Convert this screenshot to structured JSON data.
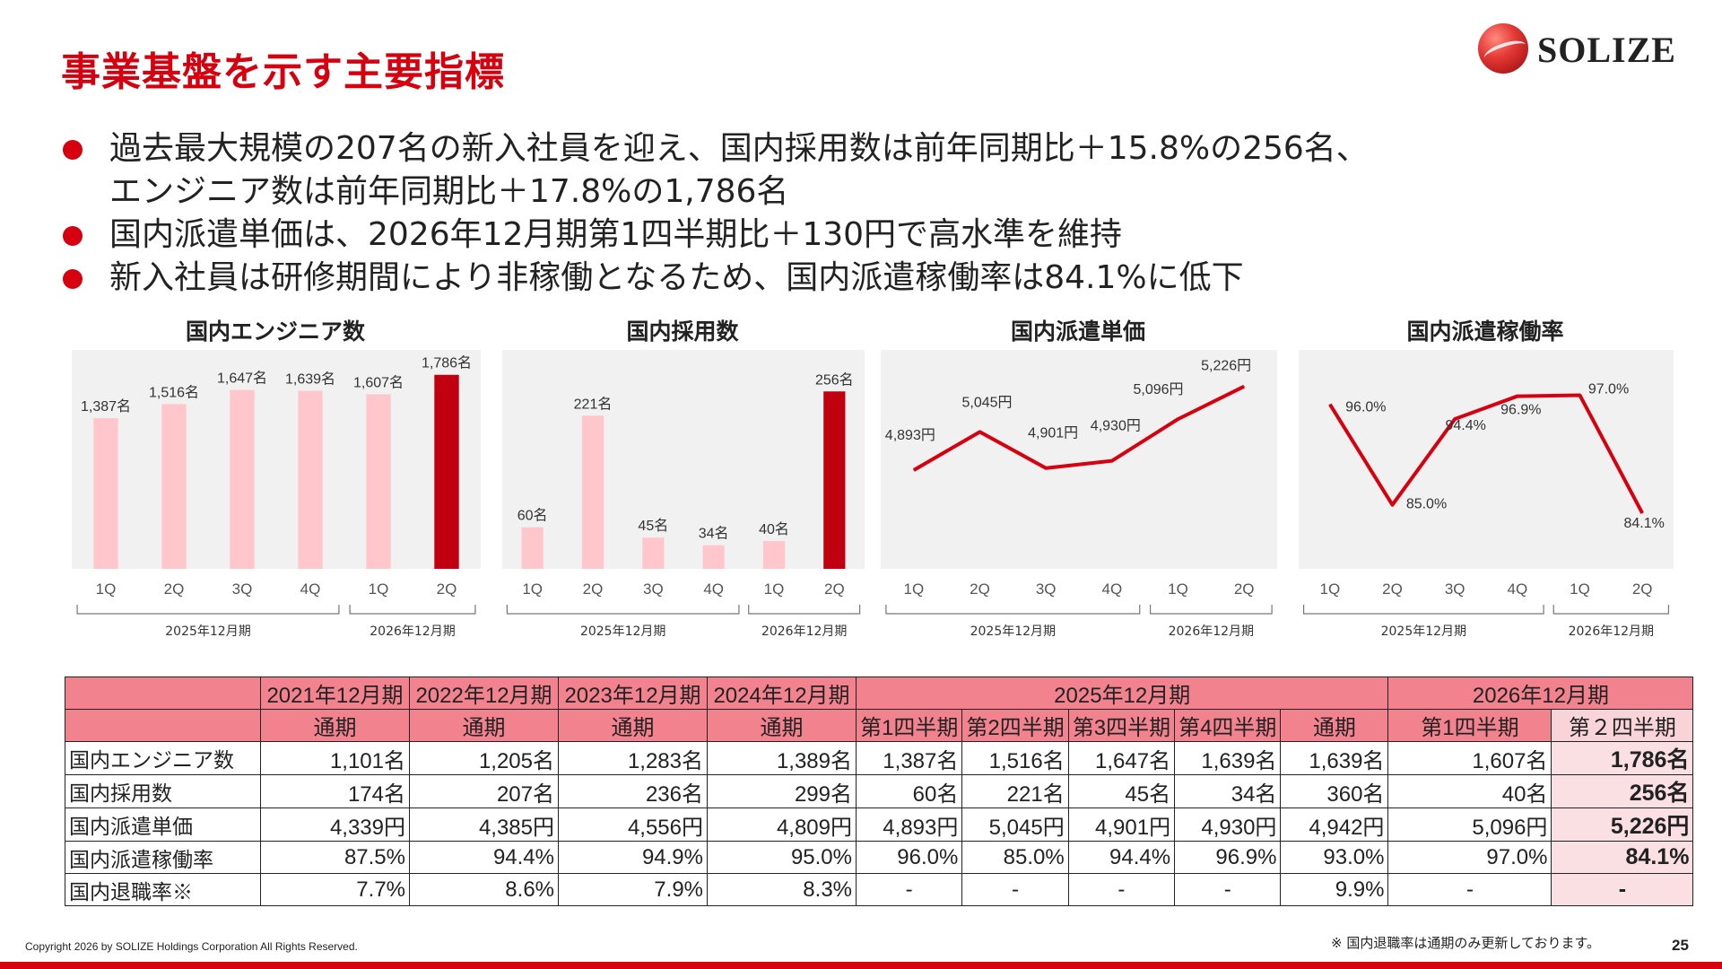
{
  "page": {
    "title": "事業基盤を示す主要指標",
    "logo_text": "SOLIZE",
    "copyright": "Copyright 2026 by SOLIZE Holdings Corporation All Rights Reserved.",
    "page_number": "25",
    "footnote": "※ 国内退職率は通期のみ更新しております。",
    "accent_color": "#d7000f"
  },
  "bullets": [
    {
      "line1": "過去最大規模の207名の新入社員を迎え、国内採用数は前年同期比＋15.8%の256名、",
      "line2": "エンジニア数は前年同期比＋17.8%の1,786名"
    },
    {
      "line1": "国内派遣単価は、2026年12月期第1四半期比＋130円で高水準を維持",
      "line2": ""
    },
    {
      "line1": "新入社員は研修期間により非稼働となるため、国内派遣稼働率は84.1%に低下",
      "line2": ""
    }
  ],
  "chart_data": [
    {
      "type": "bar",
      "title": "国内エンジニア数",
      "categories": [
        "1Q",
        "2Q",
        "3Q",
        "4Q",
        "1Q",
        "2Q"
      ],
      "values": [
        1387,
        1516,
        1647,
        1639,
        1607,
        1786
      ],
      "labels": [
        "1,387名",
        "1,516名",
        "1,647名",
        "1,639名",
        "1,607名",
        "1,786名"
      ],
      "groups": [
        {
          "label": "2025年12月期",
          "from": 0,
          "to": 3
        },
        {
          "label": "2026年12月期",
          "from": 4,
          "to": 5
        }
      ],
      "ylim": [
        0,
        1850
      ],
      "highlight_index": 5,
      "colors": {
        "bar": "#ffc7cc",
        "highlight": "#c00010",
        "background": "#f1f1f1"
      }
    },
    {
      "type": "bar",
      "title": "国内採用数",
      "categories": [
        "1Q",
        "2Q",
        "3Q",
        "4Q",
        "1Q",
        "2Q"
      ],
      "values": [
        60,
        221,
        45,
        34,
        40,
        256
      ],
      "labels": [
        "60名",
        "221名",
        "45名",
        "34名",
        "40名",
        "256名"
      ],
      "groups": [
        {
          "label": "2025年12月期",
          "from": 0,
          "to": 3
        },
        {
          "label": "2026年12月期",
          "from": 4,
          "to": 5
        }
      ],
      "ylim": [
        0,
        290
      ],
      "highlight_index": 5,
      "colors": {
        "bar": "#ffc7cc",
        "highlight": "#c00010",
        "background": "#f1f1f1"
      }
    },
    {
      "type": "line",
      "title": "国内派遣単価",
      "categories": [
        "1Q",
        "2Q",
        "3Q",
        "4Q",
        "1Q",
        "2Q"
      ],
      "values": [
        4893,
        5045,
        4901,
        4930,
        5096,
        5226
      ],
      "labels": [
        "4,893円",
        "5,045円",
        "4,901円",
        "4,930円",
        "5,096円",
        "5,226円"
      ],
      "groups": [
        {
          "label": "2025年12月期",
          "from": 0,
          "to": 3
        },
        {
          "label": "2026年12月期",
          "from": 4,
          "to": 5
        }
      ],
      "ylim": [
        4500,
        5300
      ],
      "colors": {
        "line": "#d7000f",
        "background": "#f1f1f1"
      }
    },
    {
      "type": "line",
      "title": "国内派遣稼働率",
      "categories": [
        "1Q",
        "2Q",
        "3Q",
        "4Q",
        "1Q",
        "2Q"
      ],
      "values": [
        96.0,
        85.0,
        94.4,
        96.9,
        97.0,
        84.1
      ],
      "labels": [
        "96.0%",
        "85.0%",
        "94.4%",
        "96.9%",
        "97.0%",
        "84.1%"
      ],
      "groups": [
        {
          "label": "2025年12月期",
          "from": 0,
          "to": 3
        },
        {
          "label": "2026年12月期",
          "from": 4,
          "to": 5
        }
      ],
      "ylim": [
        78,
        100
      ],
      "colors": {
        "line": "#d7000f",
        "background": "#f1f1f1"
      }
    }
  ],
  "table": {
    "header1": [
      "",
      "2021年12月期",
      "2022年12月期",
      "2023年12月期",
      "2024年12月期",
      "2025年12月期",
      "2026年12月期"
    ],
    "header2": [
      "",
      "通期",
      "通期",
      "通期",
      "通期",
      "第1四半期",
      "第2四半期",
      "第3四半期",
      "第4四半期",
      "通期",
      "第1四半期",
      "第２四半期"
    ],
    "rows": [
      {
        "label": "国内エンジニア数",
        "cells": [
          "1,101名",
          "1,205名",
          "1,283名",
          "1,389名",
          "1,387名",
          "1,516名",
          "1,647名",
          "1,639名",
          "1,639名",
          "1,607名",
          "1,786名"
        ]
      },
      {
        "label": "国内採用数",
        "cells": [
          "174名",
          "207名",
          "236名",
          "299名",
          "60名",
          "221名",
          "45名",
          "34名",
          "360名",
          "40名",
          "256名"
        ]
      },
      {
        "label": "国内派遣単価",
        "cells": [
          "4,339円",
          "4,385円",
          "4,556円",
          "4,809円",
          "4,893円",
          "5,045円",
          "4,901円",
          "4,930円",
          "4,942円",
          "5,096円",
          "5,226円"
        ]
      },
      {
        "label": "国内派遣稼働率",
        "cells": [
          "87.5%",
          "94.4%",
          "94.9%",
          "95.0%",
          "96.0%",
          "85.0%",
          "94.4%",
          "96.9%",
          "93.0%",
          "97.0%",
          "84.1%"
        ]
      },
      {
        "label": "国内退職率※",
        "cells": [
          "7.7%",
          "8.6%",
          "7.9%",
          "8.3%",
          "-",
          "-",
          "-",
          "-",
          "9.9%",
          "-",
          "-"
        ]
      }
    ]
  }
}
